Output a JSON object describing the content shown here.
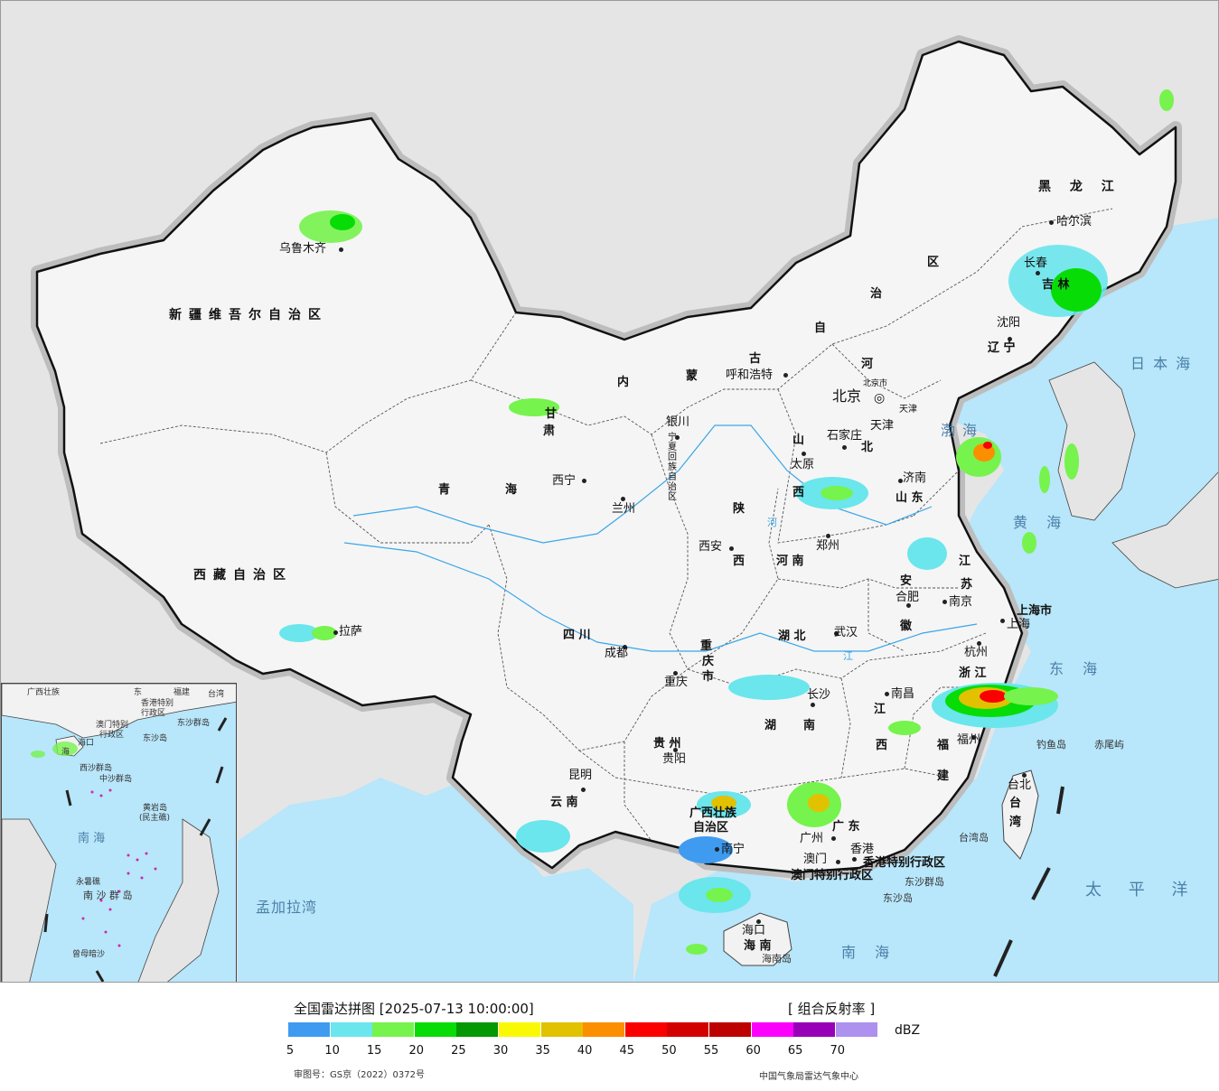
{
  "map": {
    "provinces": [
      {
        "id": "xinjiang",
        "text": "新疆维吾尔自治区"
      },
      {
        "id": "xizang",
        "text": "西藏自治区"
      },
      {
        "id": "qinghai1",
        "text": "青"
      },
      {
        "id": "qinghai2",
        "text": "海"
      },
      {
        "id": "gansu",
        "text": "甘"
      },
      {
        "id": "sichuan",
        "text": "四 川"
      },
      {
        "id": "yunnan",
        "text": "云 南"
      },
      {
        "id": "guizhou",
        "text": "贵 州"
      },
      {
        "id": "guangxi",
        "text": "广西壮族"
      },
      {
        "id": "guangxi2",
        "text": "自治区"
      },
      {
        "id": "guangdong",
        "text": "广 东"
      },
      {
        "id": "hainan",
        "text": "海 南"
      },
      {
        "id": "hunan1",
        "text": "湖"
      },
      {
        "id": "hunan2",
        "text": "南"
      },
      {
        "id": "hubei",
        "text": "湖 北"
      },
      {
        "id": "henan",
        "text": "河 南"
      },
      {
        "id": "shaanxi1",
        "text": "陕"
      },
      {
        "id": "shaanxi2",
        "text": "西"
      },
      {
        "id": "shanxi1",
        "text": "山"
      },
      {
        "id": "shanxi2",
        "text": "西"
      },
      {
        "id": "hebei1",
        "text": "河"
      },
      {
        "id": "hebei2",
        "text": "北"
      },
      {
        "id": "shandong",
        "text": "山 东"
      },
      {
        "id": "jiangsu1",
        "text": "江"
      },
      {
        "id": "jiangsu2",
        "text": "苏"
      },
      {
        "id": "anhui1",
        "text": "安"
      },
      {
        "id": "anhui2",
        "text": "徽"
      },
      {
        "id": "zhejiang",
        "text": "浙 江"
      },
      {
        "id": "jiangxi1",
        "text": "江"
      },
      {
        "id": "jiangxi2",
        "text": "西"
      },
      {
        "id": "fujian1",
        "text": "福"
      },
      {
        "id": "fujian2",
        "text": "建"
      },
      {
        "id": "taiwan1",
        "text": "台"
      },
      {
        "id": "taiwan2",
        "text": "湾"
      },
      {
        "id": "shanghai",
        "text": "上海市"
      },
      {
        "id": "chongqing1",
        "text": "重"
      },
      {
        "id": "chongqing2",
        "text": "庆"
      },
      {
        "id": "chongqing3",
        "text": "市"
      },
      {
        "id": "neimenggu1",
        "text": "内"
      },
      {
        "id": "neimenggu2",
        "text": "蒙"
      },
      {
        "id": "neimenggu3",
        "text": "古"
      },
      {
        "id": "neimenggu4",
        "text": "自"
      },
      {
        "id": "neimenggu5",
        "text": "治"
      },
      {
        "id": "neimenggu6",
        "text": "区"
      },
      {
        "id": "heilongjiang",
        "text": "黑 龙 江"
      },
      {
        "id": "jilin",
        "text": "吉 林"
      },
      {
        "id": "liaoning",
        "text": "辽 宁"
      },
      {
        "id": "ningxia",
        "text": "宁夏回族自治区"
      },
      {
        "id": "gansu2",
        "text": "肃"
      },
      {
        "id": "hk",
        "text": "香港特别行政区"
      },
      {
        "id": "macau",
        "text": "澳门特别行政区"
      }
    ],
    "cities": [
      {
        "id": "urumqi",
        "text": "乌鲁木齐"
      },
      {
        "id": "lhasa",
        "text": "拉萨"
      },
      {
        "id": "xining",
        "text": "西宁"
      },
      {
        "id": "lanzhou",
        "text": "兰州"
      },
      {
        "id": "yinchuan",
        "text": "银川"
      },
      {
        "id": "hohhot",
        "text": "呼和浩特"
      },
      {
        "id": "beijing",
        "text": "北京"
      },
      {
        "id": "beijingshi",
        "text": "北京市"
      },
      {
        "id": "tianjin",
        "text": "天津"
      },
      {
        "id": "tianjinshi",
        "text": "天津"
      },
      {
        "id": "shijiazhuang",
        "text": "石家庄"
      },
      {
        "id": "taiyuan",
        "text": "太原"
      },
      {
        "id": "jinan",
        "text": "济南"
      },
      {
        "id": "zhengzhou",
        "text": "郑州"
      },
      {
        "id": "xian",
        "text": "西安"
      },
      {
        "id": "chengdu",
        "text": "成都"
      },
      {
        "id": "chongqing",
        "text": "重庆"
      },
      {
        "id": "wuhan",
        "text": "武汉"
      },
      {
        "id": "hefei",
        "text": "合肥"
      },
      {
        "id": "nanjing",
        "text": "南京"
      },
      {
        "id": "shanghaic",
        "text": "上海"
      },
      {
        "id": "hangzhou",
        "text": "杭州"
      },
      {
        "id": "nanchang",
        "text": "南昌"
      },
      {
        "id": "changsha",
        "text": "长沙"
      },
      {
        "id": "guiyang",
        "text": "贵阳"
      },
      {
        "id": "kunming",
        "text": "昆明"
      },
      {
        "id": "nanning",
        "text": "南宁"
      },
      {
        "id": "guangzhou",
        "text": "广州"
      },
      {
        "id": "aomen",
        "text": "澳门"
      },
      {
        "id": "xianggang",
        "text": "香港"
      },
      {
        "id": "haikou",
        "text": "海口"
      },
      {
        "id": "fuzhou",
        "text": "福州"
      },
      {
        "id": "taibei",
        "text": "台北"
      },
      {
        "id": "shenyang",
        "text": "沈阳"
      },
      {
        "id": "changchun",
        "text": "长春"
      },
      {
        "id": "harbin",
        "text": "哈尔滨"
      }
    ],
    "seas": [
      {
        "id": "bohai",
        "text": "渤海"
      },
      {
        "id": "huanghai",
        "text": "黄 海"
      },
      {
        "id": "donghai",
        "text": "东 海"
      },
      {
        "id": "nanhai",
        "text": "南 海"
      },
      {
        "id": "taipingyang",
        "text": "太 平 洋"
      },
      {
        "id": "ribenhai",
        "text": "日 本 海"
      },
      {
        "id": "mengjialawan",
        "text": "孟加拉湾"
      }
    ],
    "islands": [
      {
        "id": "diaoyudao",
        "text": "钓鱼岛"
      },
      {
        "id": "chiweiyu",
        "text": "赤尾屿"
      },
      {
        "id": "taiwandao",
        "text": "台湾岛"
      },
      {
        "id": "hainandao",
        "text": "海南岛"
      },
      {
        "id": "dongsha",
        "text": "东沙群岛"
      },
      {
        "id": "dongshadao",
        "text": "东沙岛"
      }
    ],
    "rivers": [
      {
        "id": "he",
        "text": "河"
      },
      {
        "id": "jiang",
        "text": "江"
      }
    ]
  },
  "inset": {
    "labels": [
      {
        "id": "in_guangxi",
        "text": "广西壮族"
      },
      {
        "id": "in_dong",
        "text": "东"
      },
      {
        "id": "in_fujian",
        "text": "福建"
      },
      {
        "id": "in_taiwan",
        "text": "台湾"
      },
      {
        "id": "in_hk",
        "text": "香港特别"
      },
      {
        "id": "in_hk2",
        "text": "行政区"
      },
      {
        "id": "in_macau",
        "text": "澳门特别"
      },
      {
        "id": "in_macau2",
        "text": "行政区"
      },
      {
        "id": "in_dongsha",
        "text": "东沙群岛"
      },
      {
        "id": "in_dongsha2",
        "text": "东沙岛"
      },
      {
        "id": "in_haikou",
        "text": "海口"
      },
      {
        "id": "in_hainan",
        "text": "海"
      },
      {
        "id": "in_xisha",
        "text": "西沙群岛"
      },
      {
        "id": "in_zhongsha",
        "text": "中沙群岛"
      },
      {
        "id": "in_huangyan",
        "text": "黄岩岛"
      },
      {
        "id": "in_minzhujiao",
        "text": "(民主礁)"
      },
      {
        "id": "in_nanhai",
        "text": "南 海"
      },
      {
        "id": "in_nansha",
        "text": "南 沙 群 岛"
      },
      {
        "id": "in_yongshu",
        "text": "永暑礁"
      },
      {
        "id": "in_zengmu",
        "text": "曾母暗沙"
      }
    ]
  },
  "legend": {
    "title": "全国雷达拼图 [2025-07-13 10:00:00]",
    "product": "[ 组合反射率 ]",
    "unit": "dBZ",
    "colors": [
      "#3f9bf0",
      "#6ae6ec",
      "#76f34d",
      "#07dc07",
      "#059805",
      "#f9f905",
      "#e2c101",
      "#fc8f00",
      "#fb0000",
      "#d30000",
      "#bd0000",
      "#fb00fb",
      "#9700b7",
      "#ae90ef"
    ],
    "ticks": [
      "5",
      "10",
      "15",
      "20",
      "25",
      "30",
      "35",
      "40",
      "45",
      "50",
      "55",
      "60",
      "65",
      "70"
    ],
    "approval": "审图号：GS京（2022）0372号",
    "org": "中国气象局雷达气象中心"
  }
}
